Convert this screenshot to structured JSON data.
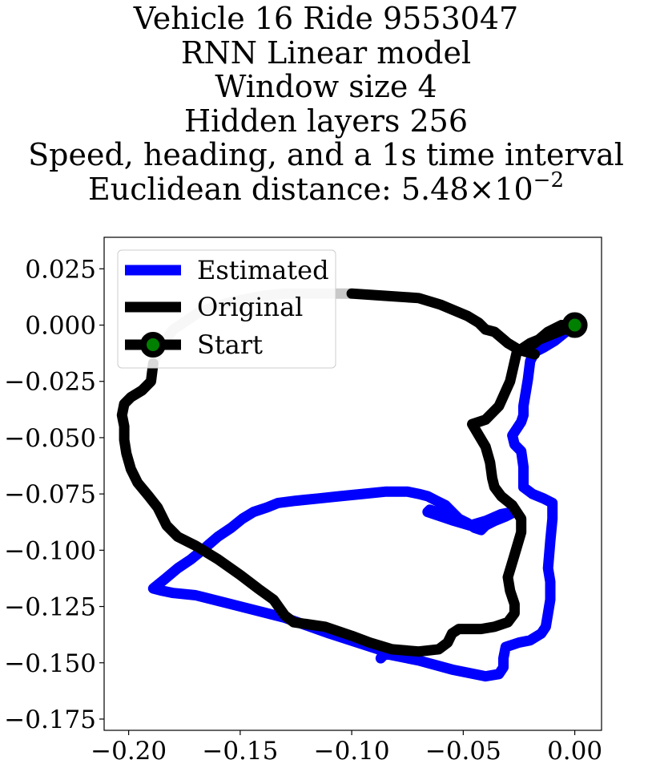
{
  "chart_data": {
    "type": "line",
    "title_lines": [
      "Vehicle 16 Ride 9553047",
      "RNN Linear model",
      "Window size 4",
      "Hidden layers 256",
      "Speed, heading, and a 1s time interval"
    ],
    "title_metric": {
      "label": "Euclidean distance: 5.48",
      "times": "×",
      "base": "10",
      "exponent": "−2"
    },
    "xlim": [
      -0.211,
      0.012
    ],
    "ylim": [
      -0.18,
      0.039
    ],
    "xticks": [
      -0.2,
      -0.15,
      -0.1,
      -0.05,
      0.0
    ],
    "xtick_labels": [
      "−0.20",
      "−0.15",
      "−0.10",
      "−0.05",
      "0.00"
    ],
    "yticks": [
      0.025,
      0.0,
      -0.025,
      -0.05,
      -0.075,
      -0.1,
      -0.125,
      -0.15,
      -0.175
    ],
    "ytick_labels": [
      "0.025",
      "0.000",
      "−0.025",
      "−0.050",
      "−0.075",
      "−0.100",
      "−0.125",
      "−0.150",
      "−0.175"
    ],
    "legend_position": "upper-left",
    "legend": [
      {
        "label": "Estimated",
        "color": "#0000ff",
        "style": "line"
      },
      {
        "label": "Original",
        "color": "#000000",
        "style": "line"
      },
      {
        "label": "Start",
        "color": "#000000",
        "style": "line-marker",
        "marker_face": "#008000"
      }
    ],
    "start_point": {
      "x": 0.0,
      "y": 0.0,
      "marker_edge": "#000000",
      "marker_face": "#008000"
    },
    "series": [
      {
        "name": "Original",
        "color": "#000000",
        "fade_color": "#c8c8c8",
        "fade_until_index": 8,
        "points": [
          [
            -0.189,
            -0.017
          ],
          [
            -0.186,
            -0.01
          ],
          [
            -0.18,
            -0.002
          ],
          [
            -0.168,
            0.006
          ],
          [
            -0.155,
            0.01
          ],
          [
            -0.14,
            0.013
          ],
          [
            -0.13,
            0.014
          ],
          [
            -0.118,
            0.014
          ],
          [
            -0.1,
            0.014
          ],
          [
            -0.085,
            0.013
          ],
          [
            -0.07,
            0.012
          ],
          [
            -0.06,
            0.009
          ],
          [
            -0.048,
            0.004
          ],
          [
            -0.043,
            0.001
          ],
          [
            -0.04,
            -0.002
          ],
          [
            -0.036,
            -0.003
          ],
          [
            -0.03,
            -0.008
          ],
          [
            -0.025,
            -0.011
          ],
          [
            -0.018,
            -0.013
          ],
          [
            -0.024,
            -0.011
          ],
          [
            -0.018,
            -0.008
          ],
          [
            -0.012,
            -0.003
          ],
          [
            -0.006,
            0.0
          ],
          [
            0.0,
            0.0
          ],
          [
            -0.01,
            -0.004
          ],
          [
            -0.02,
            -0.008
          ],
          [
            -0.026,
            -0.012
          ],
          [
            -0.029,
            -0.025
          ],
          [
            -0.034,
            -0.036
          ],
          [
            -0.04,
            -0.042
          ],
          [
            -0.046,
            -0.044
          ],
          [
            -0.043,
            -0.049
          ],
          [
            -0.04,
            -0.054
          ],
          [
            -0.038,
            -0.061
          ],
          [
            -0.037,
            -0.068
          ],
          [
            -0.036,
            -0.072
          ],
          [
            -0.033,
            -0.076
          ],
          [
            -0.028,
            -0.08
          ],
          [
            -0.024,
            -0.086
          ],
          [
            -0.024,
            -0.092
          ],
          [
            -0.027,
            -0.102
          ],
          [
            -0.03,
            -0.112
          ],
          [
            -0.029,
            -0.118
          ],
          [
            -0.027,
            -0.124
          ],
          [
            -0.027,
            -0.128
          ],
          [
            -0.03,
            -0.132
          ],
          [
            -0.036,
            -0.134
          ],
          [
            -0.042,
            -0.135
          ],
          [
            -0.052,
            -0.135
          ],
          [
            -0.055,
            -0.137
          ],
          [
            -0.057,
            -0.141
          ],
          [
            -0.061,
            -0.144
          ],
          [
            -0.07,
            -0.145
          ],
          [
            -0.082,
            -0.144
          ],
          [
            -0.092,
            -0.141
          ],
          [
            -0.1,
            -0.138
          ],
          [
            -0.112,
            -0.134
          ],
          [
            -0.126,
            -0.132
          ],
          [
            -0.13,
            -0.129
          ],
          [
            -0.135,
            -0.122
          ],
          [
            -0.142,
            -0.117
          ],
          [
            -0.15,
            -0.111
          ],
          [
            -0.16,
            -0.104
          ],
          [
            -0.17,
            -0.098
          ],
          [
            -0.178,
            -0.094
          ],
          [
            -0.183,
            -0.089
          ],
          [
            -0.187,
            -0.081
          ],
          [
            -0.191,
            -0.076
          ],
          [
            -0.196,
            -0.07
          ],
          [
            -0.199,
            -0.064
          ],
          [
            -0.201,
            -0.057
          ],
          [
            -0.202,
            -0.051
          ],
          [
            -0.202,
            -0.045
          ],
          [
            -0.203,
            -0.04
          ],
          [
            -0.202,
            -0.035
          ],
          [
            -0.199,
            -0.032
          ],
          [
            -0.194,
            -0.029
          ],
          [
            -0.19,
            -0.025
          ],
          [
            -0.189,
            -0.017
          ]
        ]
      },
      {
        "name": "Estimated",
        "color": "#0000ff",
        "points": [
          [
            0.0,
            0.0
          ],
          [
            -0.004,
            -0.003
          ],
          [
            -0.009,
            -0.007
          ],
          [
            -0.014,
            -0.01
          ],
          [
            -0.018,
            -0.012
          ],
          [
            -0.02,
            -0.016
          ],
          [
            -0.021,
            -0.024
          ],
          [
            -0.022,
            -0.03
          ],
          [
            -0.023,
            -0.036
          ],
          [
            -0.023,
            -0.04
          ],
          [
            -0.024,
            -0.043
          ],
          [
            -0.026,
            -0.046
          ],
          [
            -0.028,
            -0.049
          ],
          [
            -0.027,
            -0.053
          ],
          [
            -0.024,
            -0.056
          ],
          [
            -0.023,
            -0.063
          ],
          [
            -0.023,
            -0.07
          ],
          [
            -0.023,
            -0.072
          ],
          [
            -0.019,
            -0.075
          ],
          [
            -0.014,
            -0.077
          ],
          [
            -0.01,
            -0.079
          ],
          [
            -0.01,
            -0.086
          ],
          [
            -0.011,
            -0.096
          ],
          [
            -0.012,
            -0.108
          ],
          [
            -0.011,
            -0.114
          ],
          [
            -0.011,
            -0.122
          ],
          [
            -0.012,
            -0.128
          ],
          [
            -0.013,
            -0.134
          ],
          [
            -0.015,
            -0.137
          ],
          [
            -0.02,
            -0.14
          ],
          [
            -0.025,
            -0.141
          ],
          [
            -0.031,
            -0.143
          ],
          [
            -0.032,
            -0.148
          ],
          [
            -0.032,
            -0.152
          ],
          [
            -0.034,
            -0.155
          ],
          [
            -0.04,
            -0.156
          ],
          [
            -0.055,
            -0.153
          ],
          [
            -0.07,
            -0.149
          ],
          [
            -0.085,
            -0.146
          ],
          [
            -0.087,
            -0.148
          ],
          [
            -0.085,
            -0.145
          ],
          [
            -0.11,
            -0.137
          ],
          [
            -0.13,
            -0.13
          ],
          [
            -0.15,
            -0.125
          ],
          [
            -0.17,
            -0.12
          ],
          [
            -0.18,
            -0.119
          ],
          [
            -0.185,
            -0.118
          ],
          [
            -0.189,
            -0.117
          ],
          [
            -0.184,
            -0.113
          ],
          [
            -0.178,
            -0.108
          ],
          [
            -0.172,
            -0.104
          ],
          [
            -0.167,
            -0.1
          ],
          [
            -0.16,
            -0.094
          ],
          [
            -0.154,
            -0.09
          ],
          [
            -0.149,
            -0.086
          ],
          [
            -0.144,
            -0.083
          ],
          [
            -0.138,
            -0.081
          ],
          [
            -0.133,
            -0.079
          ],
          [
            -0.125,
            -0.078
          ],
          [
            -0.115,
            -0.077
          ],
          [
            -0.105,
            -0.076
          ],
          [
            -0.095,
            -0.075
          ],
          [
            -0.085,
            -0.074
          ],
          [
            -0.075,
            -0.074
          ],
          [
            -0.07,
            -0.075
          ],
          [
            -0.066,
            -0.076
          ],
          [
            -0.062,
            -0.078
          ],
          [
            -0.058,
            -0.08
          ],
          [
            -0.055,
            -0.083
          ],
          [
            -0.052,
            -0.086
          ],
          [
            -0.048,
            -0.088
          ],
          [
            -0.045,
            -0.09
          ],
          [
            -0.042,
            -0.091
          ],
          [
            -0.04,
            -0.089
          ],
          [
            -0.036,
            -0.087
          ],
          [
            -0.031,
            -0.085
          ],
          [
            -0.027,
            -0.083
          ],
          [
            -0.028,
            -0.083
          ],
          [
            -0.033,
            -0.084
          ],
          [
            -0.04,
            -0.087
          ],
          [
            -0.047,
            -0.089
          ],
          [
            -0.054,
            -0.087
          ],
          [
            -0.06,
            -0.085
          ],
          [
            -0.066,
            -0.083
          ],
          [
            -0.065,
            -0.082
          ],
          [
            -0.059,
            -0.084
          ]
        ]
      }
    ]
  }
}
